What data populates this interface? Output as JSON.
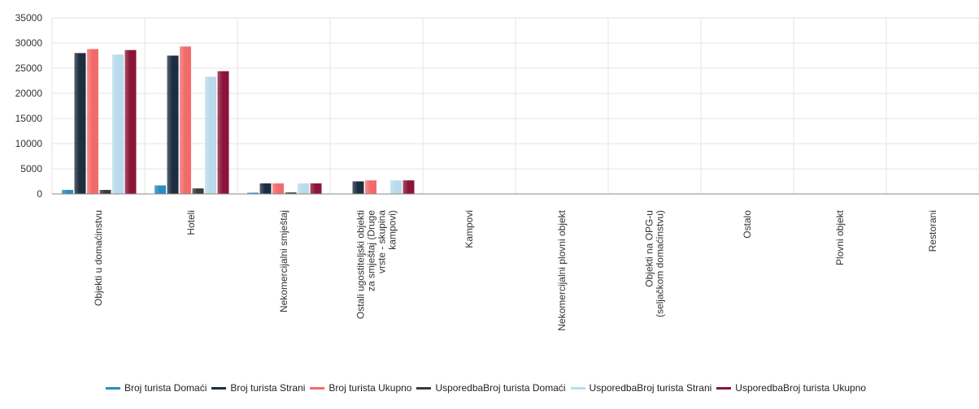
{
  "chart_data": {
    "type": "bar",
    "categories": [
      [
        "Objekti u domaćinstvu"
      ],
      [
        "Hoteli"
      ],
      [
        "Nekomercijalni smještaj"
      ],
      [
        "Ostali ugostiteljski objekti",
        "za smještaj (Druge",
        "vrste - skupina",
        "kampovi)"
      ],
      [
        "Kampovi"
      ],
      [
        "Nekomercijalni plovni objekt"
      ],
      [
        "Objekti na OPG-u",
        "(seljačkom domaćinstvu)"
      ],
      [
        "Ostalo"
      ],
      [
        "Plovni objekt"
      ],
      [
        "Restorani"
      ]
    ],
    "series": [
      {
        "name": "Broj turista Domaći",
        "color": "#2b8cbe",
        "values": [
          800,
          1700,
          250,
          50,
          0,
          0,
          0,
          0,
          0,
          0
        ]
      },
      {
        "name": "Broj turista Strani",
        "color": "#1c2e3f",
        "values": [
          28000,
          27500,
          2100,
          2500,
          0,
          0,
          0,
          0,
          0,
          0
        ]
      },
      {
        "name": "Broj turista Ukupno",
        "color": "#f26b6b",
        "values": [
          28800,
          29300,
          2100,
          2700,
          0,
          0,
          0,
          0,
          0,
          0
        ]
      },
      {
        "name": "UsporedbaBroj turista  Domaći",
        "color": "#3a3a3a",
        "values": [
          800,
          1100,
          300,
          80,
          0,
          0,
          0,
          0,
          0,
          0
        ]
      },
      {
        "name": "UsporedbaBroj turista  Strani",
        "color": "#b9dbec",
        "values": [
          27700,
          23300,
          2100,
          2700,
          0,
          0,
          0,
          0,
          0,
          0
        ]
      },
      {
        "name": "UsporedbaBroj turista  Ukupno",
        "color": "#8a1538",
        "values": [
          28600,
          24400,
          2100,
          2700,
          0,
          0,
          0,
          0,
          0,
          0
        ]
      }
    ],
    "yticks": [
      "0",
      "5000",
      "10000",
      "15000",
      "20000",
      "25000",
      "30000",
      "35000"
    ],
    "ylim": [
      0,
      35000
    ],
    "grid": true,
    "legend_position": "bottom"
  }
}
